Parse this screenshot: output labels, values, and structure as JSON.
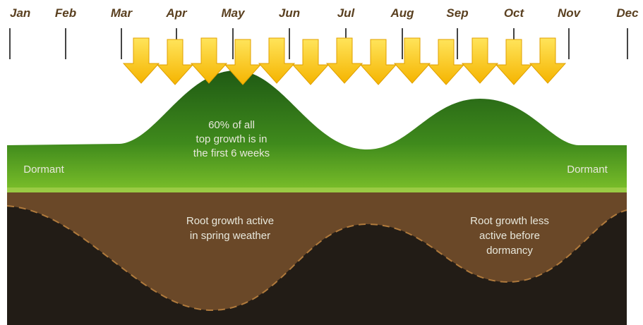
{
  "timeline": {
    "months": [
      "Jan",
      "Feb",
      "Mar",
      "Apr",
      "May",
      "Jun",
      "Jul",
      "Aug",
      "Sep",
      "Oct",
      "Nov",
      "Dec"
    ]
  },
  "top_growth": {
    "lines": [
      "60% of all",
      "top growth is in",
      "the first 6 weeks"
    ]
  },
  "dormant_left": "Dormant",
  "dormant_right": "Dormant",
  "root_spring": {
    "lines": [
      "Root growth active",
      "in spring weather"
    ]
  },
  "root_fall": {
    "lines": [
      "Root growth less",
      "active before",
      "dormancy"
    ]
  }
}
